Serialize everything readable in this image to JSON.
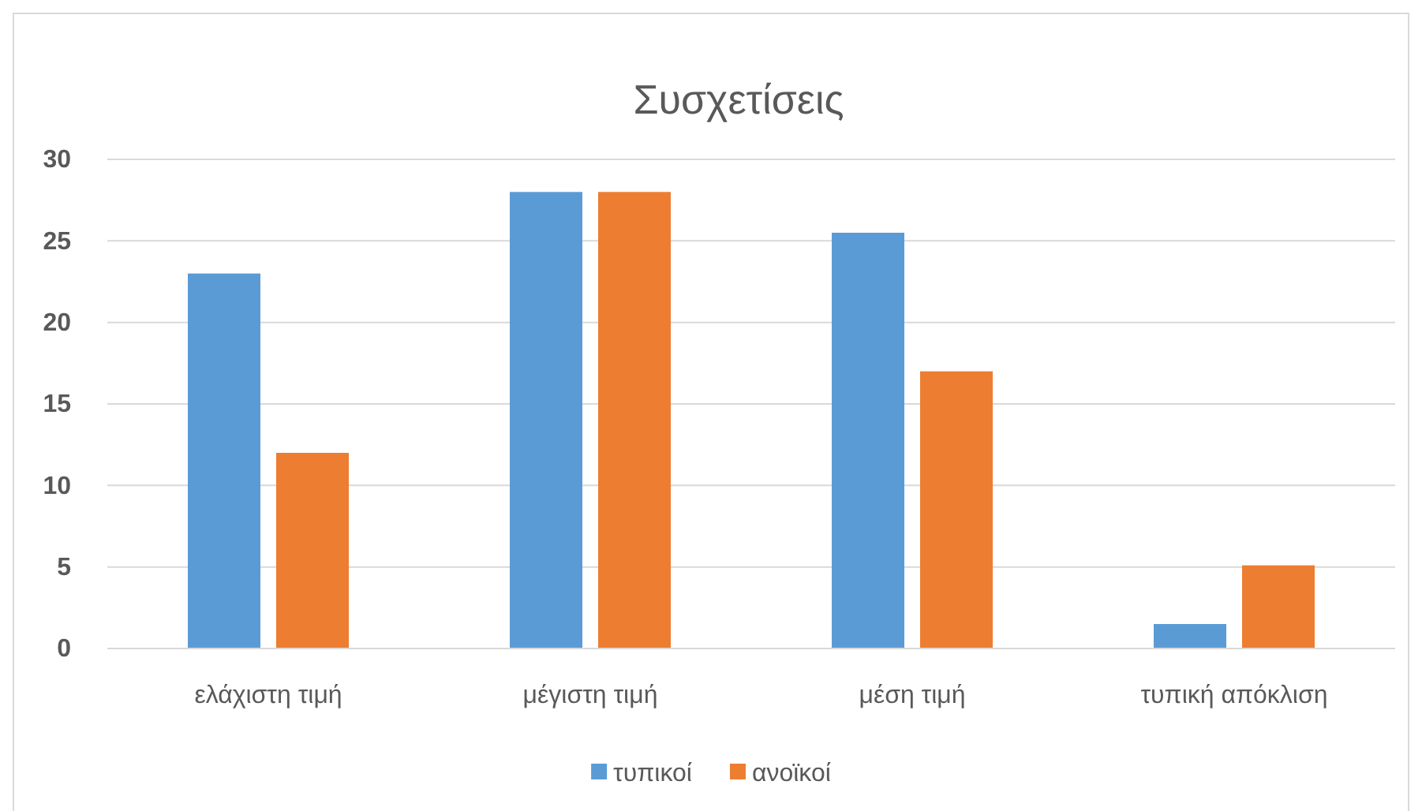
{
  "chart_data": {
    "type": "bar",
    "title": "Συσχετίσεις",
    "categories": [
      "ελάχιστη τιμή",
      "μέγιστη τιμή",
      "μέση τιμή",
      "τυπική απόκλιση"
    ],
    "series": [
      {
        "name": "τυπικοί",
        "color": "#5b9bd5",
        "values": [
          23,
          28,
          25.5,
          1.5
        ]
      },
      {
        "name": "ανοϊκοί",
        "color": "#ed7d31",
        "values": [
          12,
          28,
          17,
          5.1
        ]
      }
    ],
    "ylim": [
      0,
      30
    ],
    "yticks": [
      0,
      5,
      10,
      15,
      20,
      25,
      30
    ],
    "grid": "y",
    "legend": "bottom"
  }
}
